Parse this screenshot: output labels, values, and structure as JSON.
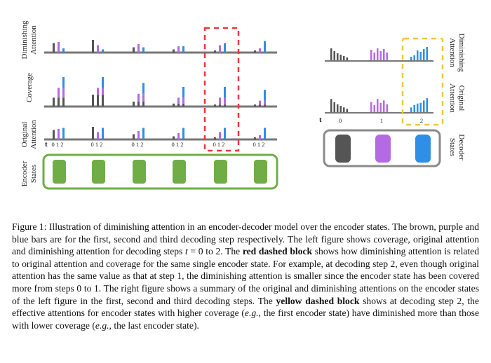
{
  "figure": {
    "left": {
      "row_labels": [
        {
          "line1": "Diminishing",
          "line2": "Attention"
        },
        {
          "line1": "Coverage",
          "line2": ""
        },
        {
          "line1": "Original",
          "line2": "Attention"
        },
        {
          "line1": "Encoder",
          "line2": "States"
        }
      ],
      "step_axis_label": "t",
      "tick_labels": [
        "0 1 2",
        "0 1 2",
        "0 1 2",
        "0 1 2",
        "0 1 2",
        "0 1 2"
      ],
      "groups": [
        {
          "dim": [
            0.45,
            0.5,
            0.2
          ],
          "cov": [
            0.45,
            0.95,
            1.0
          ],
          "orig": [
            0.45,
            0.5,
            0.55
          ]
        },
        {
          "dim": [
            0.6,
            0.35,
            0.15
          ],
          "cov": [
            0.6,
            0.95,
            1.0
          ],
          "orig": [
            0.6,
            0.35,
            0.55
          ]
        },
        {
          "dim": [
            0.25,
            0.4,
            0.25
          ],
          "cov": [
            0.25,
            0.65,
            0.75
          ],
          "orig": [
            0.25,
            0.4,
            0.55
          ]
        },
        {
          "dim": [
            0.15,
            0.3,
            0.3
          ],
          "cov": [
            0.15,
            0.45,
            0.75
          ],
          "orig": [
            0.15,
            0.3,
            0.55
          ]
        },
        {
          "dim": [
            0.1,
            0.35,
            0.45
          ],
          "cov": [
            0.1,
            0.45,
            0.95
          ],
          "orig": [
            0.1,
            0.35,
            0.55
          ]
        },
        {
          "dim": [
            0.1,
            0.2,
            0.55
          ],
          "cov": [
            0.1,
            0.3,
            0.85
          ],
          "orig": [
            0.1,
            0.2,
            0.55
          ]
        }
      ]
    },
    "right": {
      "row_labels": [
        {
          "line1": "Diminishing",
          "line2": "Attention"
        },
        {
          "line1": "Original",
          "line2": "Attention"
        },
        {
          "line1": "Decoder",
          "line2": "States"
        }
      ],
      "step_axis_label": "t",
      "step_ticks": [
        "0",
        "1",
        "2"
      ],
      "summary_diminishing": [
        [
          0.9,
          0.7,
          0.55,
          0.45,
          0.35,
          0.25
        ],
        [
          0.8,
          0.6,
          0.9,
          0.7,
          0.85,
          0.6
        ],
        [
          0.3,
          0.4,
          0.75,
          0.65,
          0.85,
          1.0
        ]
      ],
      "summary_original": [
        [
          0.9,
          0.7,
          0.55,
          0.45,
          0.35,
          0.25
        ],
        [
          0.7,
          0.5,
          0.9,
          0.65,
          0.8,
          0.55
        ],
        [
          0.35,
          0.5,
          0.6,
          0.65,
          0.8,
          0.95
        ]
      ]
    },
    "colors": {
      "step0": "#555555",
      "step1": "#b36ae2",
      "step2": "#2f8ee5",
      "encoder_fill": "#70ad47",
      "encoder_border": "#70ad47",
      "red_dash": "#e8373b",
      "yellow_dash": "#f6c343",
      "decoder_border": "#8a8a8a"
    }
  },
  "caption": {
    "segments": [
      {
        "text": "Figure 1: Illustration of diminishing attention in an encoder-decoder model over the encoder states. The brown, purple and blue bars are for the first, second and third decoding step respectively. The left figure shows coverage, original attention and diminishing attention for decoding steps ",
        "style": "normal"
      },
      {
        "text": "t",
        "style": "italic"
      },
      {
        "text": " = 0 to 2. The ",
        "style": "normal"
      },
      {
        "text": "red dashed block",
        "style": "bold"
      },
      {
        "text": " shows how diminishing attention is related to original attention and coverage for the same single encoder state. For example, at decoding step 2, even though original attention has the same value as that at step 1, the diminishing attention is smaller since the encoder state has been covered more from steps 0 to 1. The right figure shows a summary of the original and diminishing attentions on the encoder states of the left figure in the first, second and third decoding steps. The ",
        "style": "normal"
      },
      {
        "text": "yellow dashed block",
        "style": "bold"
      },
      {
        "text": " shows at decoding step 2, the effective attentions for encoder states with higher coverage (",
        "style": "normal"
      },
      {
        "text": "e.g.,",
        "style": "italic"
      },
      {
        "text": " the first encoder state) have diminished more than those with lower coverage (",
        "style": "normal"
      },
      {
        "text": "e.g.,",
        "style": "italic"
      },
      {
        "text": " the last encoder state).",
        "style": "normal"
      }
    ]
  }
}
